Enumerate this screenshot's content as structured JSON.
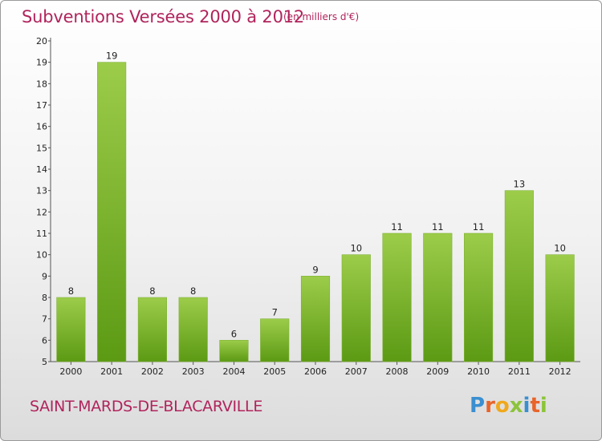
{
  "header": {
    "title": "Subventions Versées 2000 à 2012",
    "subtitle": "(en milliers d'€)"
  },
  "footer": {
    "commune": "SAINT-MARDS-DE-BLACARVILLE",
    "logo_letters": [
      "P",
      "r",
      "o",
      "x",
      "i",
      "t",
      "i"
    ],
    "logo_colors": [
      "#3a8fd0",
      "#e8642a",
      "#f0a81c",
      "#8cc43a",
      "#3a8fd0",
      "#e8642a",
      "#8cc43a"
    ]
  },
  "colors": {
    "bar_top": "#9ccc4a",
    "bar_bottom": "#5c9a14",
    "text_accent": "#b0245c"
  },
  "chart_data": {
    "type": "bar",
    "categories": [
      "2000",
      "2001",
      "2002",
      "2003",
      "2004",
      "2005",
      "2006",
      "2007",
      "2008",
      "2009",
      "2010",
      "2011",
      "2012"
    ],
    "values": [
      8,
      19,
      8,
      8,
      6,
      7,
      9,
      10,
      11,
      11,
      11,
      13,
      10
    ],
    "title": "Subventions Versées 2000 à 2012",
    "xlabel": "",
    "ylabel": "",
    "ylim": [
      5,
      20
    ],
    "yticks": [
      5,
      6,
      7,
      8,
      9,
      10,
      11,
      12,
      13,
      14,
      15,
      16,
      17,
      18,
      19,
      20
    ],
    "grid": false,
    "data_labels": true
  }
}
